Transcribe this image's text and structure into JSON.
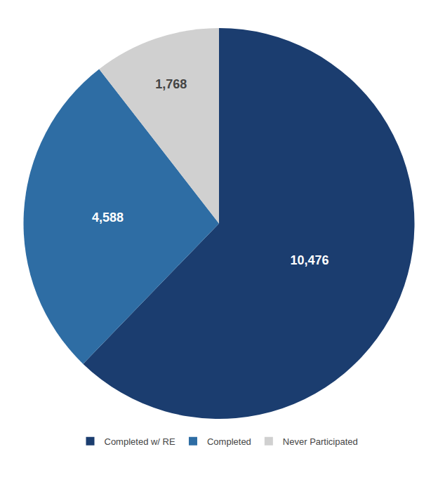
{
  "chart_data": {
    "type": "pie",
    "categories": [
      "Completed w/ RE",
      "Completed",
      "Never Participated"
    ],
    "values": [
      10476,
      4588,
      1768
    ],
    "value_labels": [
      "10,476",
      "4,588",
      "1,768"
    ],
    "colors": [
      "#1b3d6f",
      "#2e6da4",
      "#d0d0d0"
    ],
    "data_labels": true,
    "legend": "bottom"
  }
}
